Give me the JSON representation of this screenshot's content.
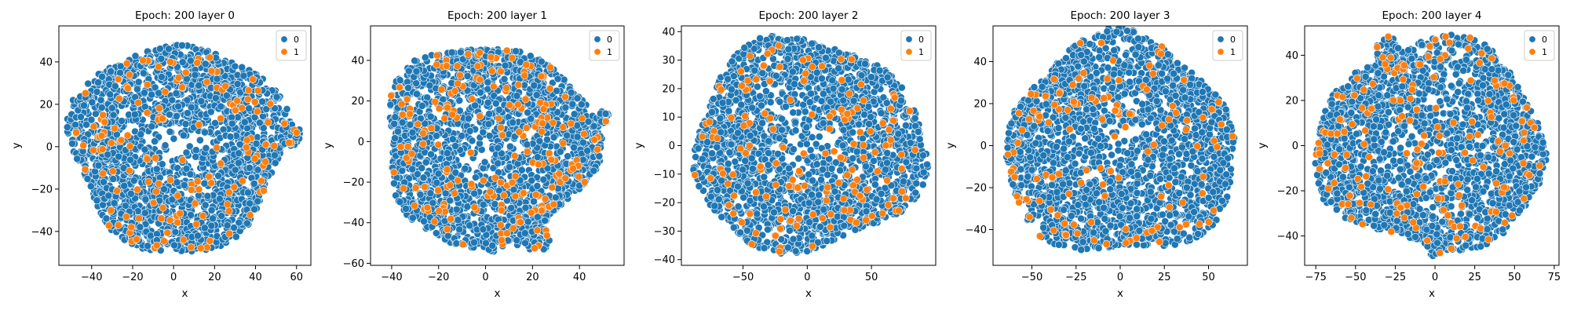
{
  "chart_data": [
    {
      "type": "scatter",
      "title": "Epoch: 200 layer 0",
      "xlabel": "x",
      "ylabel": "y",
      "xlim": [
        -56,
        67
      ],
      "ylim": [
        -56,
        57
      ],
      "xticks": [
        -40,
        -20,
        0,
        20,
        40,
        60
      ],
      "yticks": [
        -40,
        -20,
        0,
        20,
        40
      ],
      "legend_position": "top-right",
      "colors": {
        "0": "#1f77b4",
        "1": "#ff7f0e"
      },
      "series": [
        {
          "name": "0",
          "points_estimated": 4500
        },
        {
          "name": "1",
          "points_estimated": 300
        }
      ],
      "cloud": {
        "cx": 2,
        "cy": 0,
        "rx": 52,
        "ry": 49,
        "sample_points": 2200,
        "orange_fraction": 0.07
      },
      "clusters": [
        {
          "x": 56,
          "y": 6,
          "r": 6,
          "n": 60
        },
        {
          "x": 10,
          "y": -44,
          "r": 4,
          "n": 30
        }
      ]
    },
    {
      "type": "scatter",
      "title": "Epoch: 200 layer 1",
      "xlabel": "x",
      "ylabel": "y",
      "xlim": [
        -49,
        59
      ],
      "ylim": [
        -61,
        57
      ],
      "xticks": [
        -40,
        -20,
        0,
        20,
        40
      ],
      "yticks": [
        -60,
        -40,
        -20,
        0,
        20,
        40
      ],
      "legend_position": "top-right",
      "colors": {
        "0": "#1f77b4",
        "1": "#ff7f0e"
      },
      "series": [
        {
          "name": "0",
          "points_estimated": 4500
        },
        {
          "name": "1",
          "points_estimated": 300
        }
      ],
      "cloud": {
        "cx": 1,
        "cy": -2,
        "rx": 45,
        "ry": 50,
        "sample_points": 2200,
        "orange_fraction": 0.08
      },
      "clusters": [
        {
          "x": 50,
          "y": 12,
          "r": 3,
          "n": 20
        },
        {
          "x": 22,
          "y": -48,
          "r": 6,
          "n": 40
        }
      ]
    },
    {
      "type": "scatter",
      "title": "Epoch: 200 layer 2",
      "xlabel": "x",
      "ylabel": "y",
      "xlim": [
        -98,
        100
      ],
      "ylim": [
        -42,
        42
      ],
      "xticks": [
        -50,
        0,
        50
      ],
      "yticks": [
        -40,
        -30,
        -20,
        -10,
        0,
        10,
        20,
        30,
        40
      ],
      "legend_position": "top-right",
      "colors": {
        "0": "#1f77b4",
        "1": "#ff7f0e"
      },
      "series": [
        {
          "name": "0",
          "points_estimated": 4500
        },
        {
          "name": "1",
          "points_estimated": 300
        }
      ],
      "cloud": {
        "cx": 0,
        "cy": 0,
        "rx": 90,
        "ry": 37,
        "sample_points": 2200,
        "orange_fraction": 0.07
      },
      "clusters": []
    },
    {
      "type": "scatter",
      "title": "Epoch: 200 layer 3",
      "xlabel": "x",
      "ylabel": "y",
      "xlim": [
        -72,
        72
      ],
      "ylim": [
        -57,
        57
      ],
      "xticks": [
        -50,
        -25,
        0,
        25,
        50
      ],
      "yticks": [
        -40,
        -20,
        0,
        20,
        40
      ],
      "legend_position": "top-right",
      "colors": {
        "0": "#1f77b4",
        "1": "#ff7f0e"
      },
      "series": [
        {
          "name": "0",
          "points_estimated": 4500
        },
        {
          "name": "1",
          "points_estimated": 300
        }
      ],
      "cloud": {
        "cx": 0,
        "cy": -1,
        "rx": 65,
        "ry": 52,
        "sample_points": 2200,
        "orange_fraction": 0.06
      },
      "clusters": []
    },
    {
      "type": "scatter",
      "title": "Epoch: 200 layer 4",
      "xlabel": "x",
      "ylabel": "y",
      "xlim": [
        -82,
        78
      ],
      "ylim": [
        -53,
        53
      ],
      "xticks": [
        -75,
        -50,
        -25,
        0,
        25,
        50,
        75
      ],
      "yticks": [
        -40,
        -20,
        0,
        20,
        40
      ],
      "legend_position": "top-right",
      "colors": {
        "0": "#1f77b4",
        "1": "#ff7f0e"
      },
      "series": [
        {
          "name": "0",
          "points_estimated": 4500
        },
        {
          "name": "1",
          "points_estimated": 300
        }
      ],
      "cloud": {
        "cx": -2,
        "cy": 0,
        "rx": 72,
        "ry": 46,
        "sample_points": 2200,
        "orange_fraction": 0.07
      },
      "clusters": [
        {
          "x": -30,
          "y": 42,
          "r": 7,
          "n": 50
        },
        {
          "x": 0,
          "y": -44,
          "r": 5,
          "n": 30
        }
      ]
    }
  ]
}
